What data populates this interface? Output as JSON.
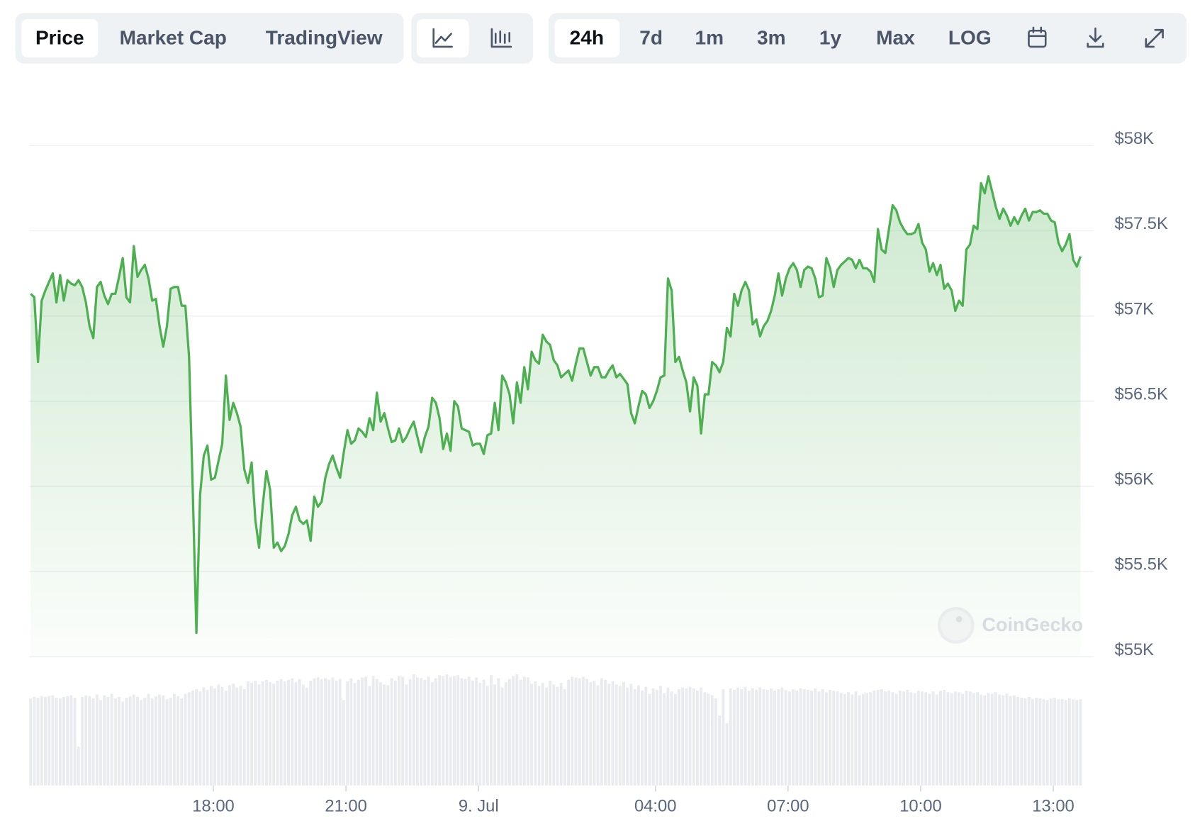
{
  "toolbar": {
    "views": [
      "Price",
      "Market Cap",
      "TradingView"
    ],
    "ranges": [
      "24h",
      "7d",
      "1m",
      "3m",
      "1y",
      "Max",
      "LOG"
    ]
  },
  "chart_data": {
    "type": "line",
    "color": "#4caf50",
    "x": [
      832,
      837,
      842,
      847,
      852,
      857,
      862,
      867,
      872,
      877,
      882,
      887,
      892,
      897,
      902,
      907,
      912,
      917,
      922,
      927,
      932,
      937,
      942,
      947,
      952,
      957,
      962,
      967,
      972,
      977,
      982,
      987,
      992,
      997,
      1002,
      1007,
      1012,
      1017,
      1022,
      1027,
      1032,
      1037,
      1042,
      1047,
      1052,
      1057,
      1062,
      1067,
      1072,
      1077,
      1082,
      1087,
      1092,
      1097,
      1102,
      1107,
      1112,
      1117,
      1122,
      1127,
      1132,
      1137,
      1142,
      1147,
      1152,
      1157,
      1162,
      1167,
      1172,
      1177,
      1182,
      1187,
      1192,
      1197,
      1202,
      1207,
      1212,
      1217,
      1222,
      1227,
      1232,
      1237,
      1242,
      1247,
      1252,
      1257,
      1262,
      1267,
      1272,
      1277,
      1282,
      1287,
      1292,
      1297,
      1302,
      1307,
      1312,
      1317,
      1322,
      1327,
      1332,
      1337,
      1342,
      1347,
      1352,
      1357,
      1362,
      1367,
      1372,
      1377,
      1382,
      1387,
      1392,
      1397,
      1402,
      1407,
      1412,
      1417,
      1422,
      1427,
      1432,
      1437,
      1442,
      1447,
      1452,
      1457,
      1462,
      1467,
      1472,
      1477,
      1482,
      1487,
      1492,
      1497,
      1502,
      1507,
      1512,
      1517,
      1522,
      1527,
      1532,
      1537,
      1542,
      1547,
      1552,
      1557,
      1562,
      1567,
      1572,
      1577,
      1582,
      1587,
      1592,
      1597,
      1602,
      1607,
      1612,
      1617,
      1622,
      1627,
      1632,
      1637,
      1642,
      1647,
      1652,
      1657,
      1662,
      1667,
      1672,
      1677,
      1682,
      1687,
      1692,
      1697,
      1702,
      1707,
      1712,
      1717,
      1722,
      1727,
      1732,
      1737,
      1742,
      1747,
      1752,
      1757,
      1762,
      1767,
      1772,
      1777,
      1782,
      1787,
      1792,
      1797,
      1802,
      1807,
      1812,
      1817,
      1822,
      1827,
      1832,
      1837,
      1842,
      1847,
      1852,
      1857,
      1862,
      1867,
      1872,
      1877,
      1882,
      1887,
      1892,
      1897,
      1902,
      1907,
      1912,
      1917,
      1922,
      1927,
      1932,
      1937,
      1942,
      1947,
      1952,
      1957,
      1962,
      1967,
      1972,
      1977,
      1982,
      1987,
      1992,
      1997,
      2002,
      2007,
      2012,
      2017,
      2022,
      2027,
      2032,
      2037,
      2042,
      2047,
      2052,
      2057,
      2062,
      2067,
      2072,
      2077,
      2082,
      2087,
      2092,
      2097,
      2102,
      2107,
      2112,
      2117,
      2122,
      2127,
      2132,
      2137,
      2142,
      2147,
      2152,
      2157,
      2162,
      2167,
      2172,
      2177,
      2182,
      2187,
      2192,
      2197,
      2202,
      2207,
      2212,
      2217,
      2222,
      2227,
      2232,
      2237,
      2242,
      2247,
      2252,
      2257
    ],
    "values": [
      57130,
      57110,
      56730,
      57090,
      57150,
      57200,
      57250,
      57080,
      57240,
      57090,
      57210,
      57190,
      57180,
      57210,
      57170,
      57080,
      56940,
      56870,
      57170,
      57200,
      57120,
      57070,
      57130,
      57130,
      57230,
      57340,
      57110,
      57080,
      57410,
      57230,
      57270,
      57300,
      57220,
      57090,
      57100,
      56940,
      56820,
      56940,
      57160,
      57170,
      57170,
      57060,
      57060,
      56760,
      55980,
      55140,
      55950,
      56180,
      56240,
      56040,
      56050,
      56150,
      56250,
      56650,
      56390,
      56490,
      56430,
      56350,
      56100,
      56020,
      56140,
      55800,
      55640,
      55890,
      56090,
      55980,
      55640,
      55670,
      55620,
      55650,
      55720,
      55830,
      55880,
      55800,
      55780,
      55800,
      55680,
      55940,
      55880,
      55910,
      56050,
      56130,
      56180,
      56110,
      56050,
      56200,
      56330,
      56250,
      56270,
      56340,
      56320,
      56290,
      56400,
      56330,
      56550,
      56380,
      56430,
      56340,
      56260,
      56270,
      56340,
      56260,
      56290,
      56340,
      56380,
      56290,
      56200,
      56290,
      56350,
      56520,
      56490,
      56400,
      56220,
      56310,
      56210,
      56500,
      56470,
      56340,
      56330,
      56320,
      56240,
      56250,
      56250,
      56190,
      56300,
      56310,
      56490,
      56330,
      56650,
      56610,
      56540,
      56370,
      56610,
      56490,
      56700,
      56570,
      56790,
      56740,
      56720,
      56890,
      56850,
      56830,
      56740,
      56710,
      56640,
      56660,
      56680,
      56620,
      56720,
      56810,
      56810,
      56730,
      56650,
      56700,
      56700,
      56640,
      56640,
      56680,
      56710,
      56640,
      56660,
      56630,
      56600,
      56430,
      56370,
      56470,
      56560,
      56540,
      56460,
      56500,
      56560,
      56640,
      56650,
      57220,
      57150,
      56730,
      56760,
      56680,
      56610,
      56440,
      56640,
      56590,
      56310,
      56540,
      56540,
      56730,
      56710,
      56670,
      56730,
      56930,
      56880,
      57130,
      57060,
      57150,
      57200,
      57150,
      56950,
      56980,
      56880,
      56940,
      56970,
      57030,
      57120,
      57250,
      57120,
      57220,
      57280,
      57310,
      57270,
      57170,
      57270,
      57290,
      57280,
      57220,
      57110,
      57120,
      57340,
      57280,
      57170,
      57270,
      57300,
      57320,
      57340,
      57330,
      57280,
      57330,
      57280,
      57280,
      57260,
      57200,
      57510,
      57390,
      57370,
      57510,
      57650,
      57620,
      57550,
      57510,
      57480,
      57480,
      57490,
      57540,
      57430,
      57390,
      57260,
      57310,
      57240,
      57300,
      57160,
      57190,
      57150,
      57030,
      57090,
      57060,
      57390,
      57420,
      57530,
      57510,
      57780,
      57720,
      57820,
      57730,
      57640,
      57570,
      57630,
      57590,
      57530,
      57580,
      57540,
      57590,
      57630,
      57560,
      57610,
      57610,
      57620,
      57600,
      57600,
      57560,
      57550,
      57430,
      57380,
      57420,
      57480,
      57330,
      57290,
      57350
    ],
    "volume": [
      112,
      114,
      113,
      115,
      114,
      115,
      116,
      113,
      112,
      114,
      115,
      116,
      113,
      50,
      114,
      116,
      115,
      112,
      117,
      110,
      116,
      114,
      118,
      112,
      114,
      108,
      113,
      115,
      117,
      114,
      110,
      113,
      118,
      112,
      115,
      117,
      116,
      111,
      113,
      118,
      115,
      112,
      118,
      120,
      122,
      124,
      121,
      126,
      123,
      128,
      125,
      130,
      127,
      122,
      129,
      131,
      126,
      128,
      124,
      134,
      132,
      135,
      130,
      134,
      136,
      133,
      131,
      135,
      137,
      134,
      136,
      138,
      133,
      137,
      130,
      126,
      135,
      138,
      139,
      137,
      138,
      136,
      139,
      135,
      137,
      110,
      134,
      138,
      132,
      136,
      139,
      140,
      128,
      141,
      137,
      133,
      130,
      129,
      138,
      135,
      141,
      140,
      130,
      137,
      143,
      139,
      138,
      136,
      140,
      133,
      138,
      142,
      141,
      143,
      140,
      141,
      142,
      138,
      137,
      140,
      135,
      139,
      132,
      136,
      128,
      142,
      130,
      138,
      126,
      133,
      137,
      141,
      143,
      136,
      140,
      139,
      131,
      134,
      128,
      132,
      126,
      135,
      130,
      127,
      132,
      124,
      136,
      140,
      139,
      138,
      140,
      137,
      133,
      135,
      129,
      138,
      136,
      131,
      134,
      130,
      128,
      133,
      126,
      131,
      124,
      129,
      122,
      127,
      118,
      125,
      123,
      128,
      119,
      126,
      121,
      118,
      124,
      126,
      125,
      127,
      125,
      122,
      126,
      120,
      118,
      116,
      112,
      90,
      124,
      80,
      125,
      123,
      126,
      124,
      127,
      122,
      125,
      123,
      126,
      124,
      123,
      125,
      122,
      124,
      126,
      123,
      121,
      124,
      122,
      125,
      124,
      123,
      122,
      125,
      121,
      124,
      120,
      123,
      122,
      121,
      119,
      118,
      120,
      117,
      121,
      116,
      118,
      119,
      120,
      122,
      123,
      124,
      121,
      122,
      120,
      118,
      122,
      121,
      123,
      120,
      119,
      122,
      121,
      120,
      118,
      121,
      117,
      122,
      123,
      120,
      119,
      121,
      120,
      118,
      122,
      121,
      119,
      120,
      117,
      116,
      119,
      118,
      120,
      117,
      116,
      118,
      115,
      116,
      114,
      113,
      112,
      114,
      111,
      113,
      112,
      111,
      110,
      112,
      113,
      111,
      111,
      110,
      112,
      111,
      110,
      111
    ],
    "xlim": [
      832,
      2272
    ],
    "xticks": [
      {
        "value": 1080,
        "label": "18:00"
      },
      {
        "value": 1260,
        "label": "21:00"
      },
      {
        "value": 1440,
        "label": "9. Jul"
      },
      {
        "value": 1680,
        "label": "04:00"
      },
      {
        "value": 1860,
        "label": "07:00"
      },
      {
        "value": 2040,
        "label": "10:00"
      },
      {
        "value": 2220,
        "label": "13:00"
      }
    ],
    "ylim": [
      55000,
      58000
    ],
    "yticks": [
      {
        "value": 55000,
        "label": "$55K"
      },
      {
        "value": 55500,
        "label": "$55.5K"
      },
      {
        "value": 56000,
        "label": "$56K"
      },
      {
        "value": 56500,
        "label": "$56.5K"
      },
      {
        "value": 57000,
        "label": "$57K"
      },
      {
        "value": 57500,
        "label": "$57.5K"
      },
      {
        "value": 58000,
        "label": "$58K"
      }
    ],
    "grid": true,
    "watermark": "CoinGecko"
  }
}
